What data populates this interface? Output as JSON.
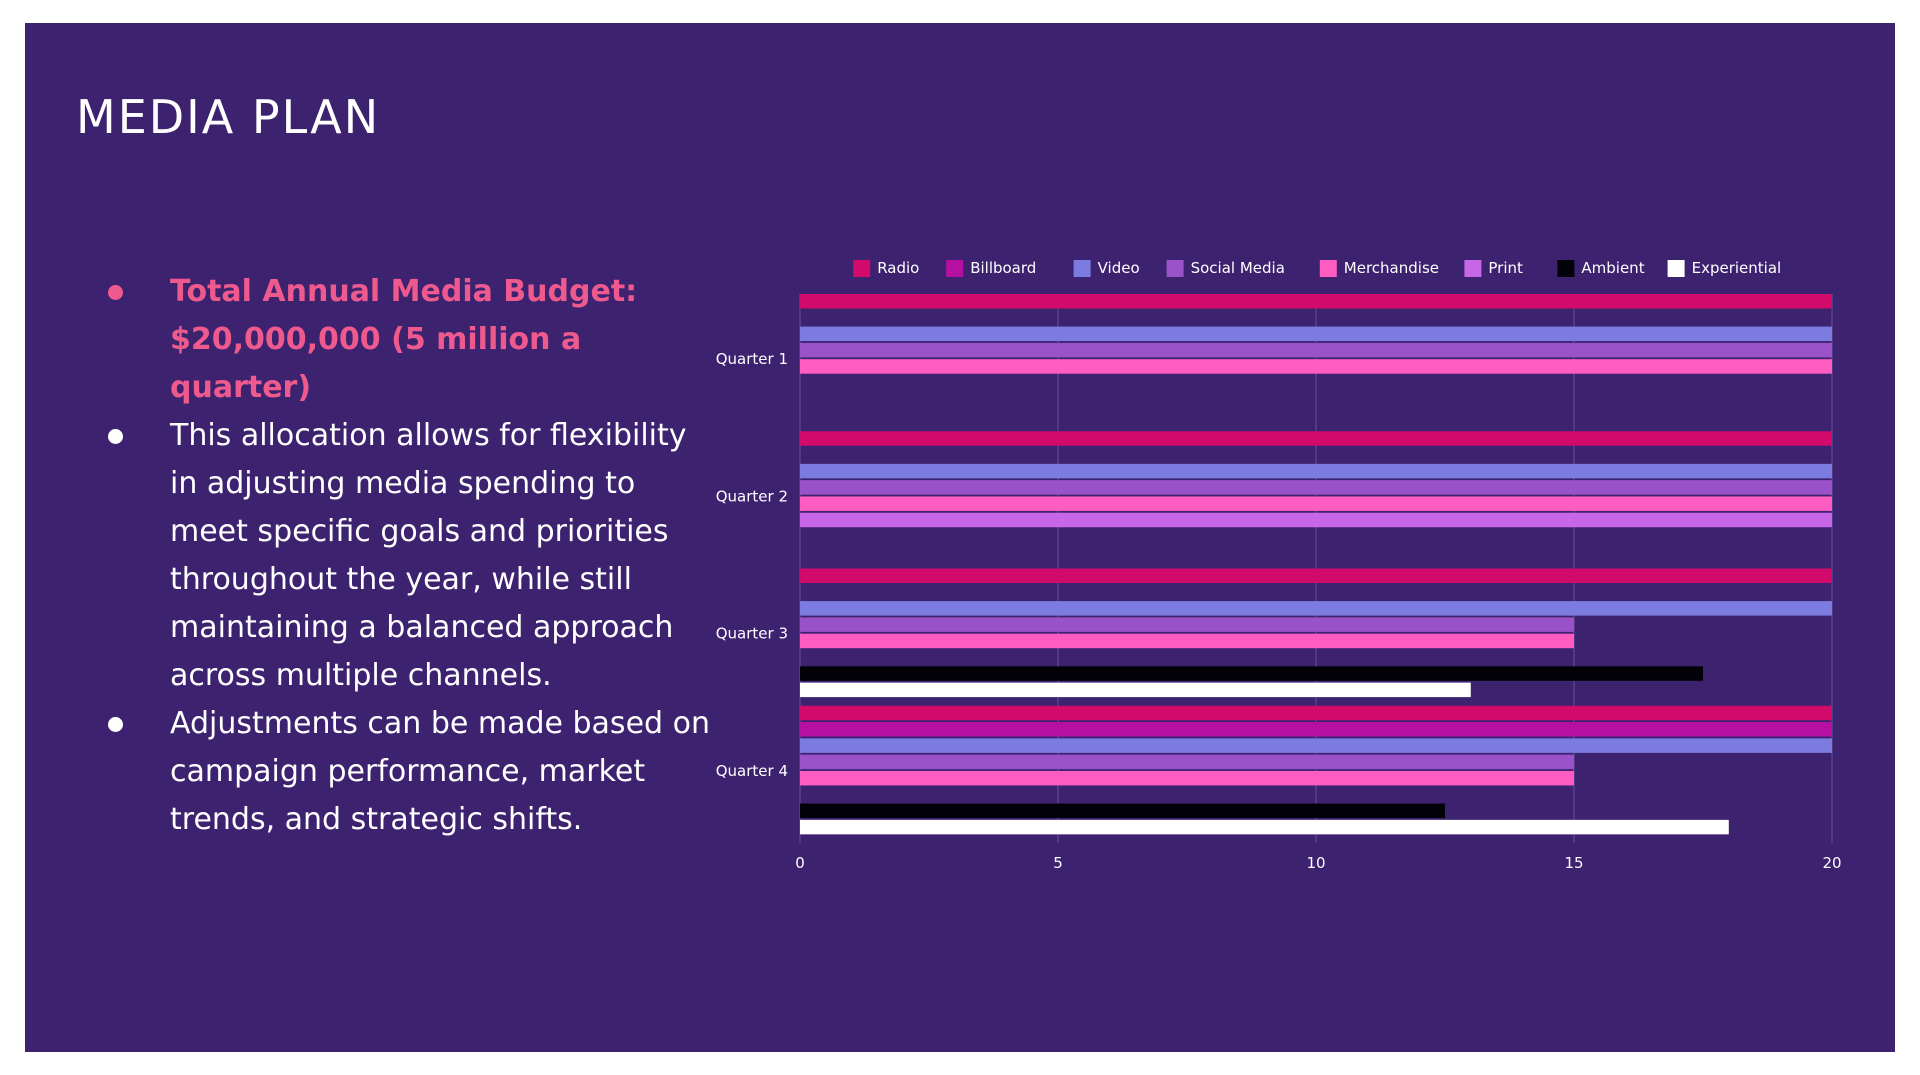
{
  "slide": {
    "title": "MEDIA PLAN",
    "bullets": [
      "Total Annual Media Budget: $20,000,000 (5 million a quarter)",
      "This allocation allows for flexibility in adjusting media spending to meet specific goals and priorities throughout the year, while still maintaining a balanced approach across multiple channels.",
      "Adjustments can be made based on campaign performance, market trends, and strategic shifts."
    ]
  },
  "colors": {
    "background": "#3d2270",
    "highlight": "#ef5a8e",
    "text": "#ffffff"
  },
  "chart_data": {
    "type": "bar",
    "orientation": "horizontal",
    "categories": [
      "Quarter 1",
      "Quarter 2",
      "Quarter 3",
      "Quarter 4"
    ],
    "xlim": [
      0,
      20
    ],
    "xticks": [
      0,
      5,
      10,
      15,
      20
    ],
    "grid": true,
    "legend_position": "top",
    "series": [
      {
        "name": "Radio",
        "color": "#d10a6b",
        "values": [
          20,
          20,
          20,
          20
        ]
      },
      {
        "name": "Billboard",
        "color": "#b80fa3",
        "values": [
          null,
          null,
          null,
          20
        ]
      },
      {
        "name": "Video",
        "color": "#7b7be0",
        "values": [
          20,
          20,
          20,
          20
        ]
      },
      {
        "name": "Social Media",
        "color": "#9a52c9",
        "values": [
          20,
          20,
          15,
          15
        ]
      },
      {
        "name": "Merchandise",
        "color": "#ff5cc2",
        "values": [
          20,
          20,
          15,
          15
        ]
      },
      {
        "name": "Print",
        "color": "#c766e6",
        "values": [
          null,
          20,
          null,
          null
        ]
      },
      {
        "name": "Ambient",
        "color": "#030209",
        "values": [
          null,
          null,
          17.5,
          12.5
        ]
      },
      {
        "name": "Experiential",
        "color": "#ffffff",
        "values": [
          null,
          null,
          13,
          18
        ]
      }
    ]
  }
}
